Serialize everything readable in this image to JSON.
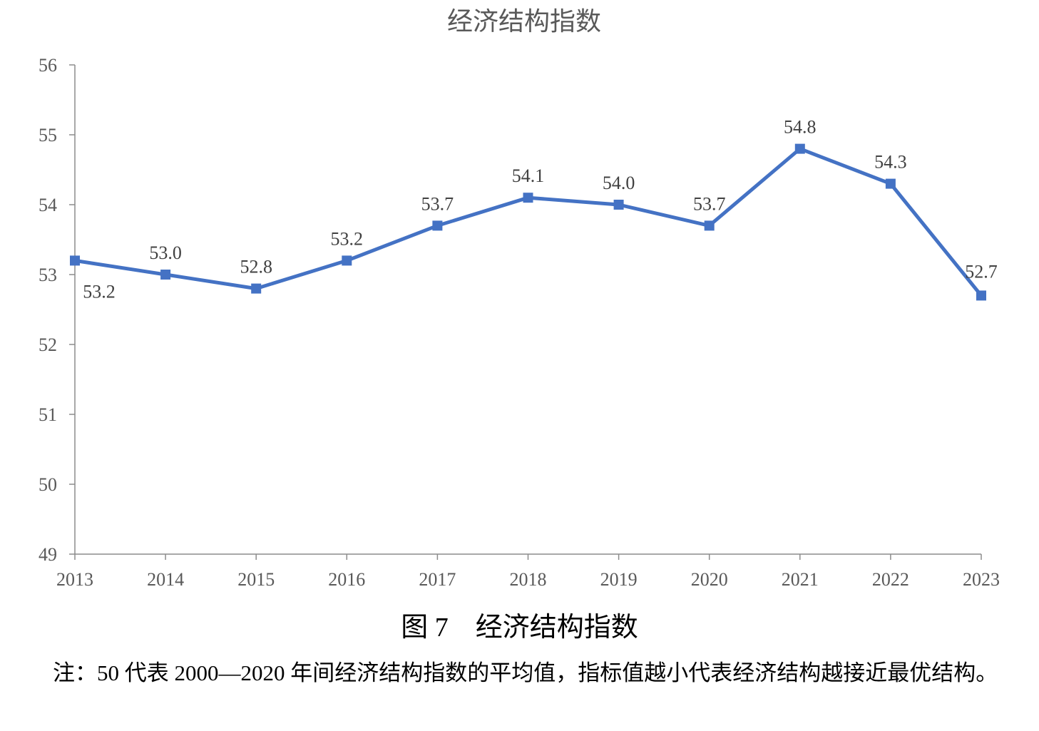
{
  "chart_data": {
    "type": "line",
    "title": "经济结构指数",
    "xlabel": "",
    "ylabel": "",
    "categories": [
      "2013",
      "2014",
      "2015",
      "2016",
      "2017",
      "2018",
      "2019",
      "2020",
      "2021",
      "2022",
      "2023"
    ],
    "series": [
      {
        "values": [
          53.2,
          53.0,
          52.8,
          53.2,
          53.7,
          54.1,
          54.0,
          53.7,
          54.8,
          54.3,
          52.7
        ],
        "color": "#4472C4",
        "marker": "square"
      }
    ],
    "data_labels": [
      "53.2",
      "53.0",
      "52.8",
      "53.2",
      "53.7",
      "54.1",
      "54.0",
      "53.7",
      "54.8",
      "54.3",
      "52.7"
    ],
    "ylim": [
      49,
      56
    ],
    "yticks": [
      "49",
      "50",
      "51",
      "52",
      "53",
      "54",
      "55",
      "56"
    ],
    "grid": false,
    "legend": "none"
  },
  "figure": {
    "caption": "图 7　经济结构指数",
    "note": "注：50 代表 2000—2020 年间经济结构指数的平均值，指标值越小代表经济结构越接近最优结构。"
  }
}
